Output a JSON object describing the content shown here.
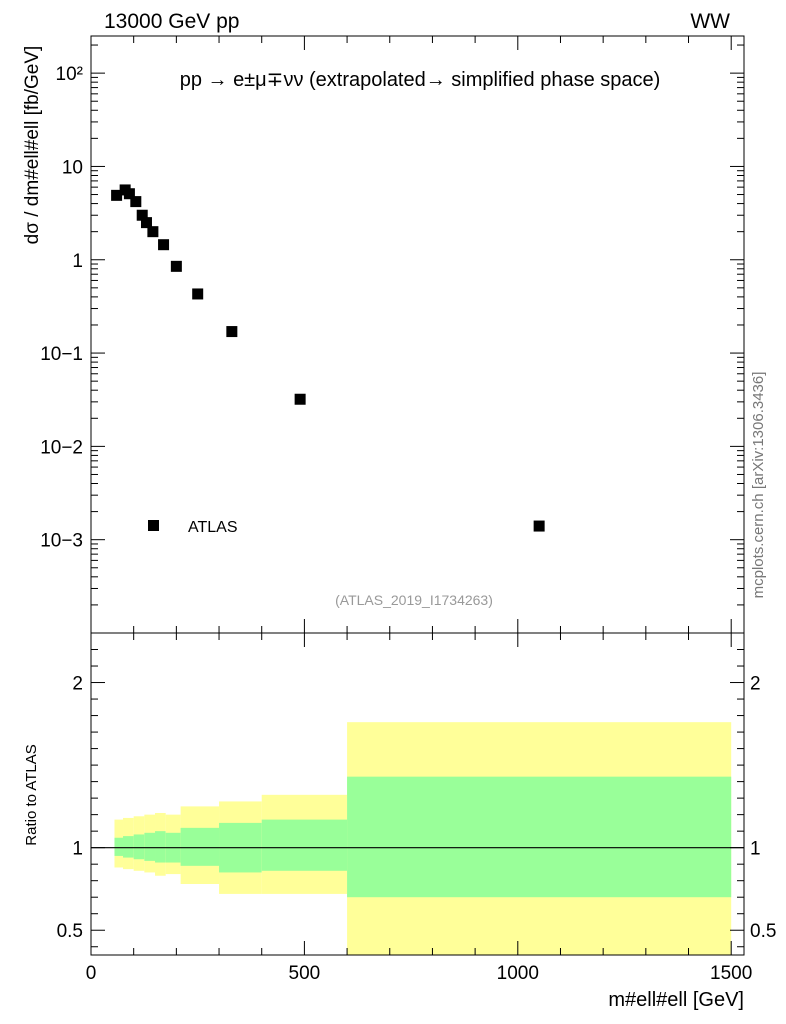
{
  "header": {
    "left": "13000 GeV pp",
    "right": "WW"
  },
  "title": "pp → e±μ∓νν (extrapolated→ simplified phase space)",
  "ylabel": "dσ / dm#ell#ell [fb/GeV]",
  "xlabel": "m#ell#ell [GeV]",
  "watermark": "mcplots.cern.ch [arXiv:1306.3436]",
  "analysis_tag": "(ATLAS_2019_I1734263)",
  "ratio_label": "Ratio to ATLAS",
  "chart_data": [
    {
      "type": "scatter",
      "name": "main",
      "yscale": "log",
      "xlim": [
        0,
        1530
      ],
      "ylim": [
        0.0001,
        250
      ],
      "legend": [
        {
          "label": "ATLAS",
          "marker": "square",
          "color": "#000000"
        }
      ],
      "series": [
        {
          "name": "ATLAS",
          "x": [
            60,
            80,
            90,
            105,
            120,
            130,
            145,
            170,
            200,
            250,
            330,
            490,
            1050
          ],
          "y": [
            4.9,
            5.6,
            5.1,
            4.2,
            3.0,
            2.5,
            2.0,
            1.45,
            0.85,
            0.43,
            0.17,
            0.032,
            0.0014
          ]
        }
      ],
      "y_ticks": [
        {
          "value": 0.001,
          "label": "10−3"
        },
        {
          "value": 0.01,
          "label": "10−2"
        },
        {
          "value": 0.1,
          "label": "10−1"
        },
        {
          "value": 1,
          "label": "1"
        },
        {
          "value": 10,
          "label": "10"
        },
        {
          "value": 100,
          "label": "10²"
        }
      ]
    },
    {
      "type": "area",
      "name": "ratio",
      "xlim": [
        0,
        1530
      ],
      "ylim": [
        0.35,
        2.3
      ],
      "reference_line": 1,
      "bins": [
        {
          "x0": 55,
          "x1": 75,
          "inner": [
            0.95,
            1.06
          ],
          "outer": [
            0.88,
            1.17
          ]
        },
        {
          "x0": 75,
          "x1": 100,
          "inner": [
            0.94,
            1.07
          ],
          "outer": [
            0.87,
            1.18
          ]
        },
        {
          "x0": 100,
          "x1": 125,
          "inner": [
            0.93,
            1.08
          ],
          "outer": [
            0.86,
            1.19
          ]
        },
        {
          "x0": 125,
          "x1": 150,
          "inner": [
            0.92,
            1.09
          ],
          "outer": [
            0.85,
            1.2
          ]
        },
        {
          "x0": 150,
          "x1": 175,
          "inner": [
            0.91,
            1.1
          ],
          "outer": [
            0.83,
            1.21
          ]
        },
        {
          "x0": 175,
          "x1": 210,
          "inner": [
            0.91,
            1.09
          ],
          "outer": [
            0.84,
            1.2
          ]
        },
        {
          "x0": 210,
          "x1": 300,
          "inner": [
            0.89,
            1.12
          ],
          "outer": [
            0.78,
            1.25
          ]
        },
        {
          "x0": 300,
          "x1": 400,
          "inner": [
            0.85,
            1.15
          ],
          "outer": [
            0.72,
            1.28
          ]
        },
        {
          "x0": 400,
          "x1": 600,
          "inner": [
            0.86,
            1.17
          ],
          "outer": [
            0.72,
            1.32
          ]
        },
        {
          "x0": 600,
          "x1": 1500,
          "inner": [
            0.7,
            1.43
          ],
          "outer": [
            0.35,
            1.76
          ]
        }
      ],
      "y_ticks": [
        {
          "value": 0.5,
          "label": "0.5"
        },
        {
          "value": 1,
          "label": "1"
        },
        {
          "value": 2,
          "label": "2"
        }
      ],
      "x_ticks": [
        {
          "value": 0,
          "label": "0"
        },
        {
          "value": 500,
          "label": "500"
        },
        {
          "value": 1000,
          "label": "1000"
        },
        {
          "value": 1500,
          "label": "1500"
        }
      ],
      "inner_color": "#99ff99",
      "outer_color": "#ffff99"
    }
  ]
}
